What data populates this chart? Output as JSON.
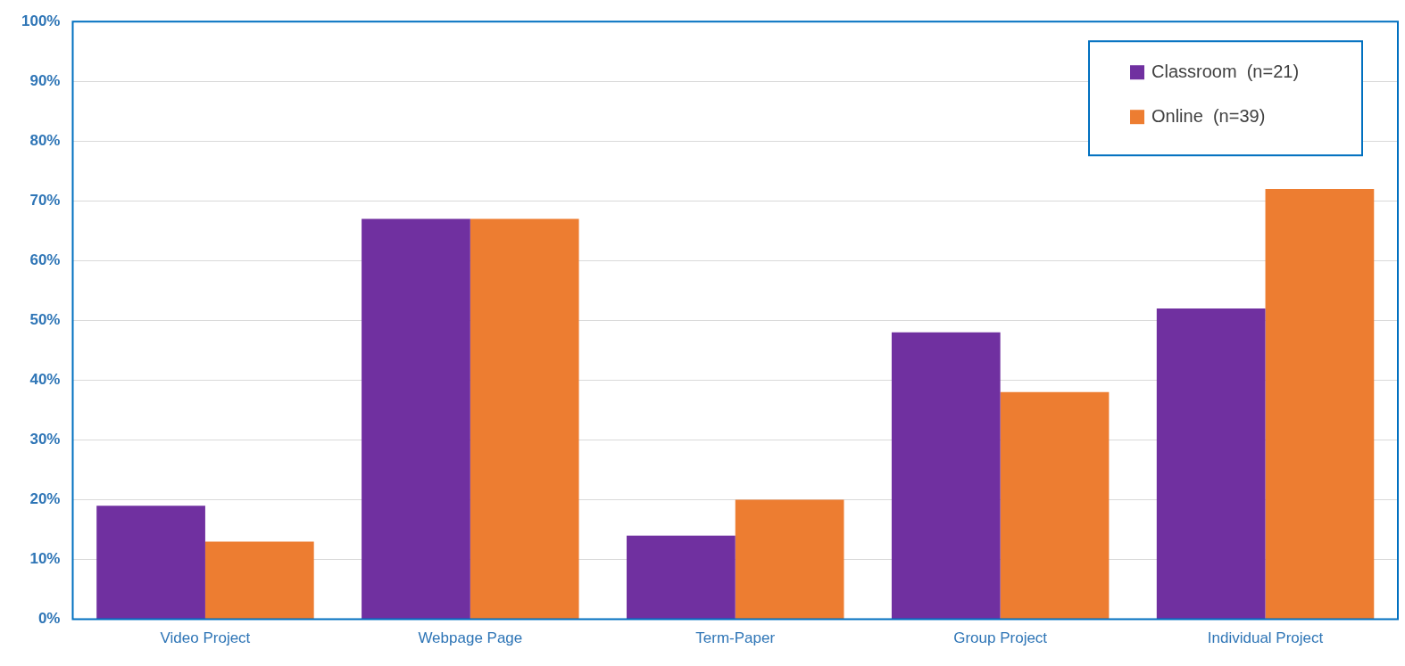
{
  "chart_data": {
    "type": "bar",
    "categories": [
      "Video Project",
      "Webpage Page",
      "Term-Paper",
      "Group Project",
      "Individual Project"
    ],
    "series": [
      {
        "name": "Classroom  (n=21)",
        "color": "#7030a0",
        "values": [
          19,
          67,
          14,
          48,
          52
        ]
      },
      {
        "name": "Online  (n=39)",
        "color": "#ed7d31",
        "values": [
          13,
          67,
          20,
          38,
          72
        ]
      }
    ],
    "ylim": [
      0,
      100
    ],
    "yticks": [
      {
        "value": 0,
        "label": "0%"
      },
      {
        "value": 10,
        "label": "10%"
      },
      {
        "value": 20,
        "label": "20%"
      },
      {
        "value": 30,
        "label": "30%"
      },
      {
        "value": 40,
        "label": "40%"
      },
      {
        "value": 50,
        "label": "50%"
      },
      {
        "value": 60,
        "label": "60%"
      },
      {
        "value": 70,
        "label": "70%"
      },
      {
        "value": 80,
        "label": "80%"
      },
      {
        "value": 90,
        "label": "90%"
      },
      {
        "value": 100,
        "label": "100%"
      }
    ],
    "grid": "y",
    "legend": "top right"
  }
}
